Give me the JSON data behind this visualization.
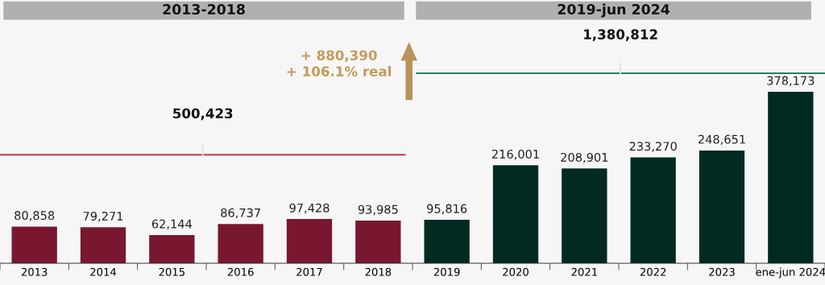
{
  "chart_data": {
    "type": "bar",
    "categories": [
      "2013",
      "2014",
      "2015",
      "2016",
      "2017",
      "2018",
      "2019",
      "2020",
      "2021",
      "2022",
      "2023",
      "ene-jun 2024"
    ],
    "values": [
      80858,
      79271,
      62144,
      86737,
      97428,
      93985,
      95816,
      216001,
      208901,
      233270,
      248651,
      378173
    ],
    "colors": [
      "#7a1730",
      "#7a1730",
      "#7a1730",
      "#7a1730",
      "#7a1730",
      "#7a1730",
      "#022a22",
      "#022a22",
      "#022a22",
      "#022a22",
      "#022a22",
      "#022a22"
    ],
    "value_labels": [
      "80,858",
      "79,271",
      "62,144",
      "86,737",
      "97,428",
      "93,985",
      "95,816",
      "216,001",
      "208,901",
      "233,270",
      "248,651",
      "378,173"
    ],
    "tick_labels": "x",
    "annotations": [
      "500,423",
      "1,380,812",
      "+ 880,390\n+ 106.1% real",
      "2013-2018",
      "2019-jun 2024"
    ],
    "grid": false
  }
}
